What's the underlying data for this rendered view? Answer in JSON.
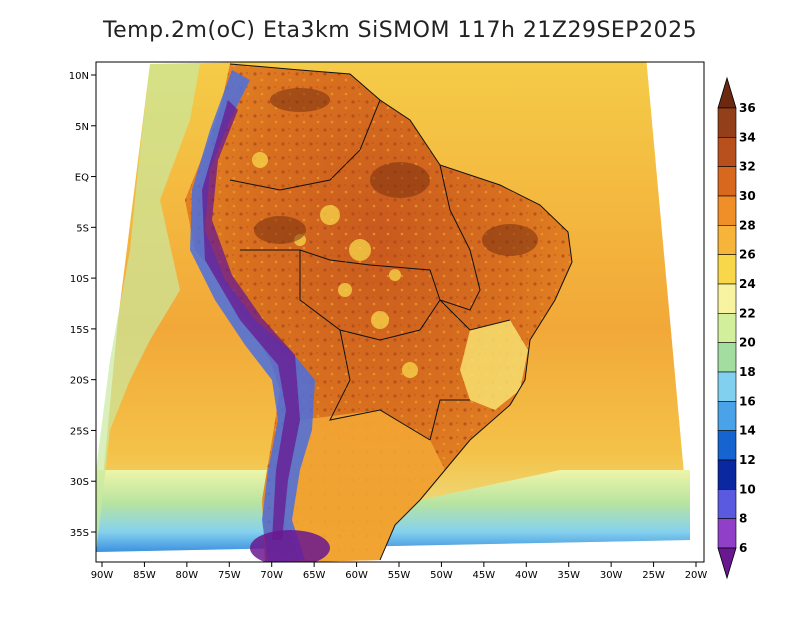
{
  "title": "Temp.2m(oC) Eta3km SiSMOM 117h 21Z29SEP2025",
  "longitude_ticks": [
    "90W",
    "85W",
    "80W",
    "75W",
    "70W",
    "65W",
    "60W",
    "55W",
    "50W",
    "45W",
    "40W",
    "35W",
    "30W",
    "25W",
    "20W"
  ],
  "latitude_ticks": [
    "10N",
    "5N",
    "EQ",
    "5S",
    "10S",
    "15S",
    "20S",
    "25S",
    "30S",
    "35S"
  ],
  "colorbar": {
    "unit": "oC",
    "labels": [
      "36",
      "34",
      "32",
      "30",
      "28",
      "26",
      "24",
      "22",
      "20",
      "18",
      "16",
      "14",
      "12",
      "10",
      "8",
      "6"
    ],
    "colors": [
      "#6b2a10",
      "#93401a",
      "#b8501e",
      "#d8681e",
      "#f08e28",
      "#f7b43a",
      "#f8d84a",
      "#f8f3a0",
      "#d2ef9c",
      "#a4dda0",
      "#82d0f0",
      "#4aa2e8",
      "#1664d0",
      "#0a28a0",
      "#5a5ae0",
      "#9040c8",
      "#6a1890"
    ]
  }
}
